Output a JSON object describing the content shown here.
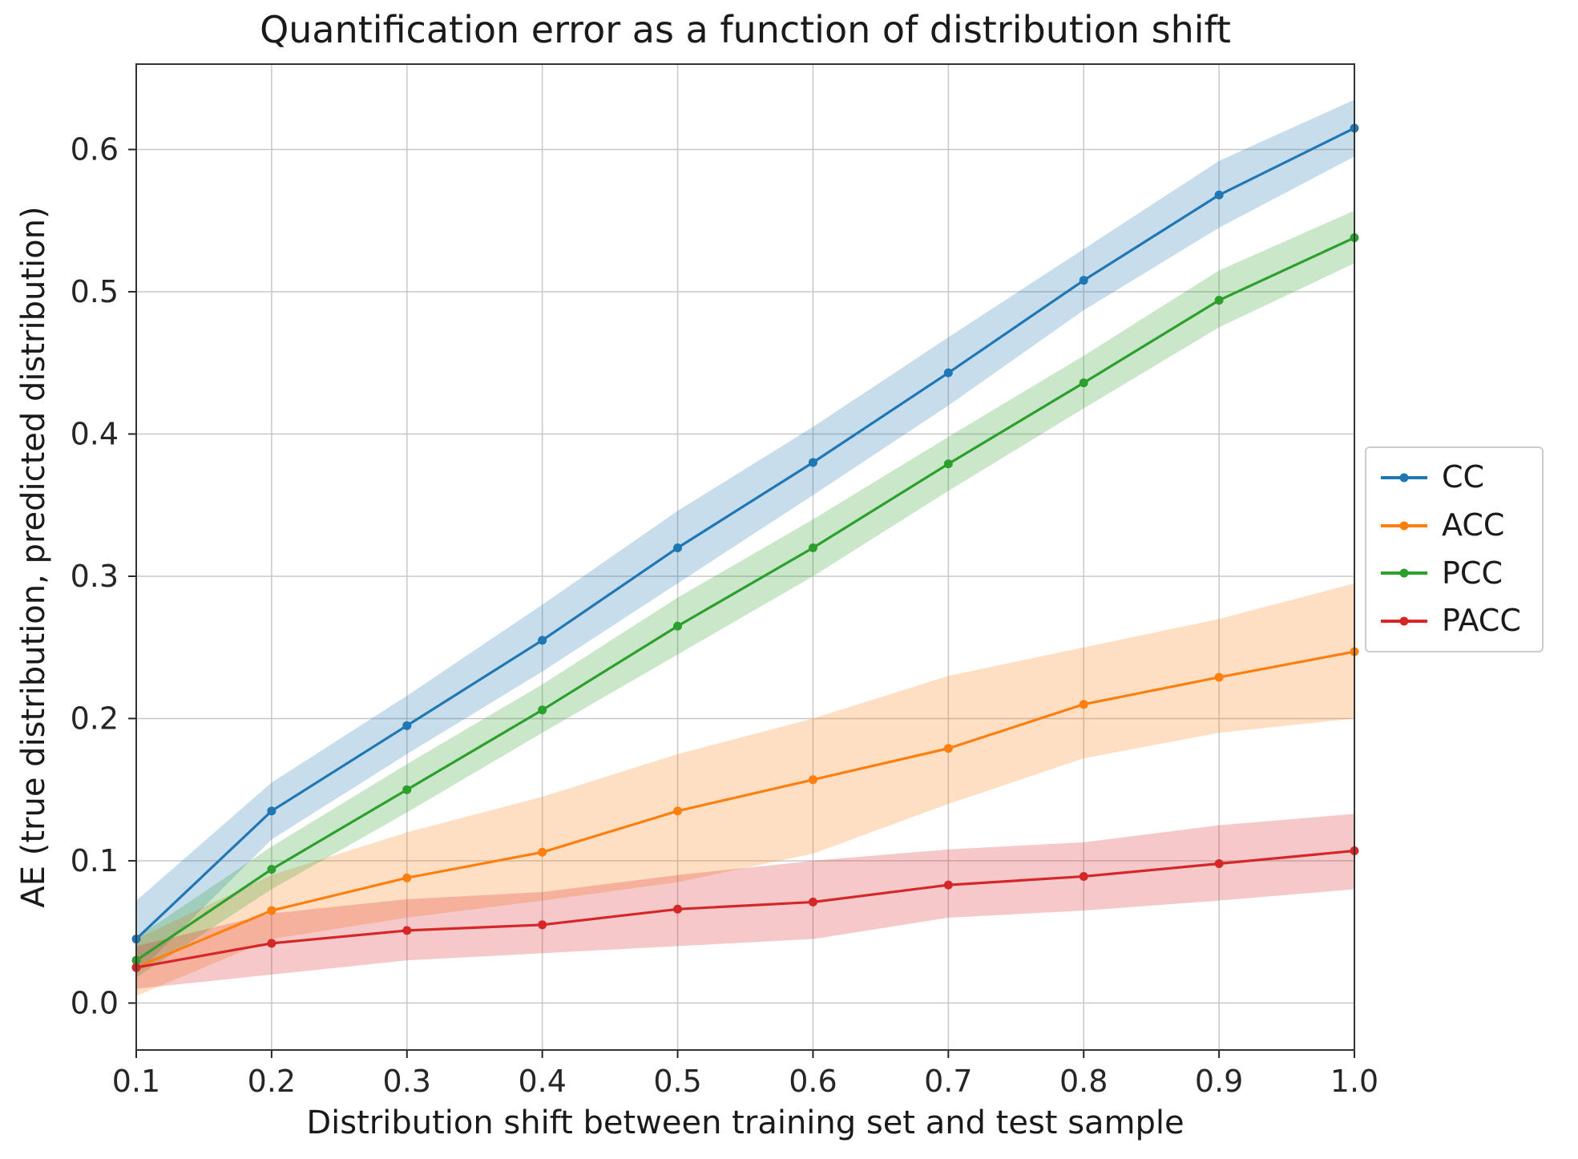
{
  "chart_data": {
    "type": "line",
    "title": "Quantification error as a function of distribution shift",
    "xlabel": "Distribution shift between training set and test sample",
    "ylabel": "AE (true distribution, predicted distribution)",
    "x": [
      0.1,
      0.2,
      0.3,
      0.4,
      0.5,
      0.6,
      0.7,
      0.8,
      0.9,
      1.0
    ],
    "xtick_labels": [
      "0.1",
      "0.2",
      "0.3",
      "0.4",
      "0.5",
      "0.6",
      "0.7",
      "0.8",
      "0.9",
      "1.0"
    ],
    "yticks": [
      0.0,
      0.1,
      0.2,
      0.3,
      0.4,
      0.5,
      0.6
    ],
    "ytick_labels": [
      "0.0",
      "0.1",
      "0.2",
      "0.3",
      "0.4",
      "0.5",
      "0.6"
    ],
    "xlim": [
      0.1,
      1.0
    ],
    "ylim": [
      -0.033,
      0.66
    ],
    "grid": true,
    "grid_color": "#c8c8c8",
    "spine_color": "#333333",
    "tick_color": "#262626",
    "band_alpha": 0.25,
    "legend_position": "outside-right",
    "series": [
      {
        "name": "CC",
        "color": "#1f77b4",
        "values": [
          0.045,
          0.135,
          0.195,
          0.255,
          0.32,
          0.38,
          0.443,
          0.508,
          0.568,
          0.615
        ],
        "lower": [
          0.02,
          0.115,
          0.175,
          0.233,
          0.295,
          0.357,
          0.42,
          0.487,
          0.545,
          0.595
        ],
        "upper": [
          0.072,
          0.155,
          0.216,
          0.28,
          0.346,
          0.405,
          0.468,
          0.53,
          0.592,
          0.635
        ]
      },
      {
        "name": "ACC",
        "color": "#ff7f0e",
        "values": [
          0.025,
          0.065,
          0.088,
          0.106,
          0.135,
          0.157,
          0.179,
          0.21,
          0.229,
          0.247
        ],
        "lower": [
          0.005,
          0.045,
          0.06,
          0.072,
          0.085,
          0.105,
          0.14,
          0.172,
          0.19,
          0.2
        ],
        "upper": [
          0.045,
          0.09,
          0.12,
          0.145,
          0.175,
          0.2,
          0.23,
          0.25,
          0.27,
          0.295
        ]
      },
      {
        "name": "PCC",
        "color": "#2ca02c",
        "values": [
          0.03,
          0.094,
          0.15,
          0.206,
          0.265,
          0.32,
          0.379,
          0.436,
          0.494,
          0.538
        ],
        "lower": [
          0.018,
          0.08,
          0.134,
          0.19,
          0.245,
          0.3,
          0.36,
          0.418,
          0.475,
          0.52
        ],
        "upper": [
          0.046,
          0.11,
          0.168,
          0.224,
          0.285,
          0.34,
          0.398,
          0.455,
          0.515,
          0.557
        ]
      },
      {
        "name": "PACC",
        "color": "#d62728",
        "values": [
          0.025,
          0.042,
          0.051,
          0.055,
          0.066,
          0.071,
          0.083,
          0.089,
          0.098,
          0.107
        ],
        "lower": [
          0.01,
          0.02,
          0.03,
          0.035,
          0.04,
          0.045,
          0.06,
          0.065,
          0.072,
          0.08
        ],
        "upper": [
          0.04,
          0.063,
          0.073,
          0.078,
          0.09,
          0.1,
          0.108,
          0.113,
          0.125,
          0.133
        ]
      }
    ]
  }
}
